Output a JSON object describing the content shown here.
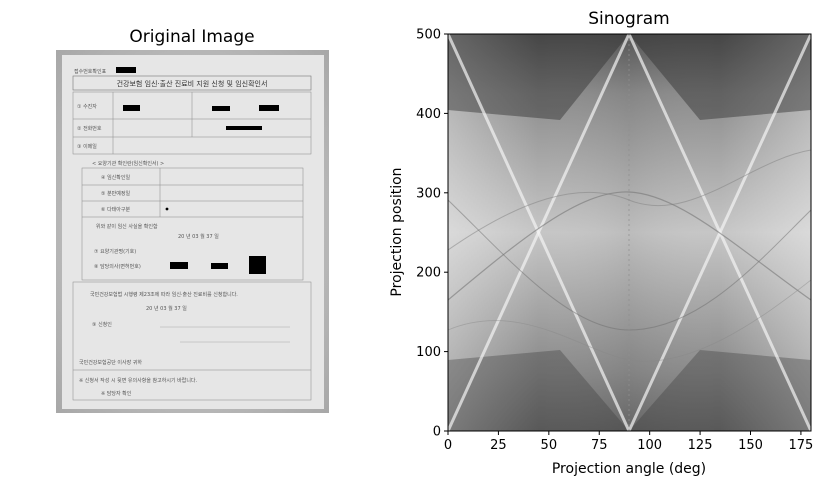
{
  "figure": {
    "left_panel": {
      "title": "Original Image",
      "document": {
        "heading": "건강보험 임신·출산 진료비 지원 신청 및 임신확인서",
        "top_label": "접수번호확인표",
        "fields": [
          "① 수진자",
          "② 전화번호",
          "③ 이메일"
        ],
        "section_title": "< 요양기관 확인란(임신확인서) >",
        "section_rows": [
          "④ 임신확인일",
          "⑤ 분만예정일",
          "⑥ 다태아구분"
        ],
        "confirm_text": "위와 같이 임신 사실을 확인함",
        "date_line": "20   년   03   월   37   일",
        "institution_lines": [
          "⑦ 요양기관명(기호)",
          "⑧ 담당의사(면허번호)"
        ],
        "application_text": "국민건강보험법 시행령 제23조에 따라 임신·출산 진료비를 신청합니다.",
        "applicant_line": "⑨ 신청인",
        "footer_title": "국민건강보험공단 이사장 귀하",
        "footer_notes": [
          "※ 신청서 작성 시 뒷면 유의사항을 참고하시기 바랍니다.",
          "※ 담당자 확인"
        ]
      }
    },
    "right_panel": {
      "title": "Sinogram",
      "xlabel": "Projection angle (deg)",
      "ylabel": "Projection position"
    }
  },
  "chart_data": [
    {
      "type": "image",
      "title": "Original Image",
      "description_axes": "none"
    },
    {
      "type": "heatmap",
      "title": "Sinogram",
      "xlabel": "Projection angle (deg)",
      "ylabel": "Projection position",
      "xlim": [
        0,
        180
      ],
      "ylim": [
        0,
        500
      ],
      "xticks": [
        0,
        25,
        50,
        75,
        100,
        125,
        150,
        175
      ],
      "yticks": [
        0,
        100,
        200,
        300,
        400,
        500
      ],
      "colormap": "gray",
      "grid": false,
      "legend": "none"
    }
  ]
}
